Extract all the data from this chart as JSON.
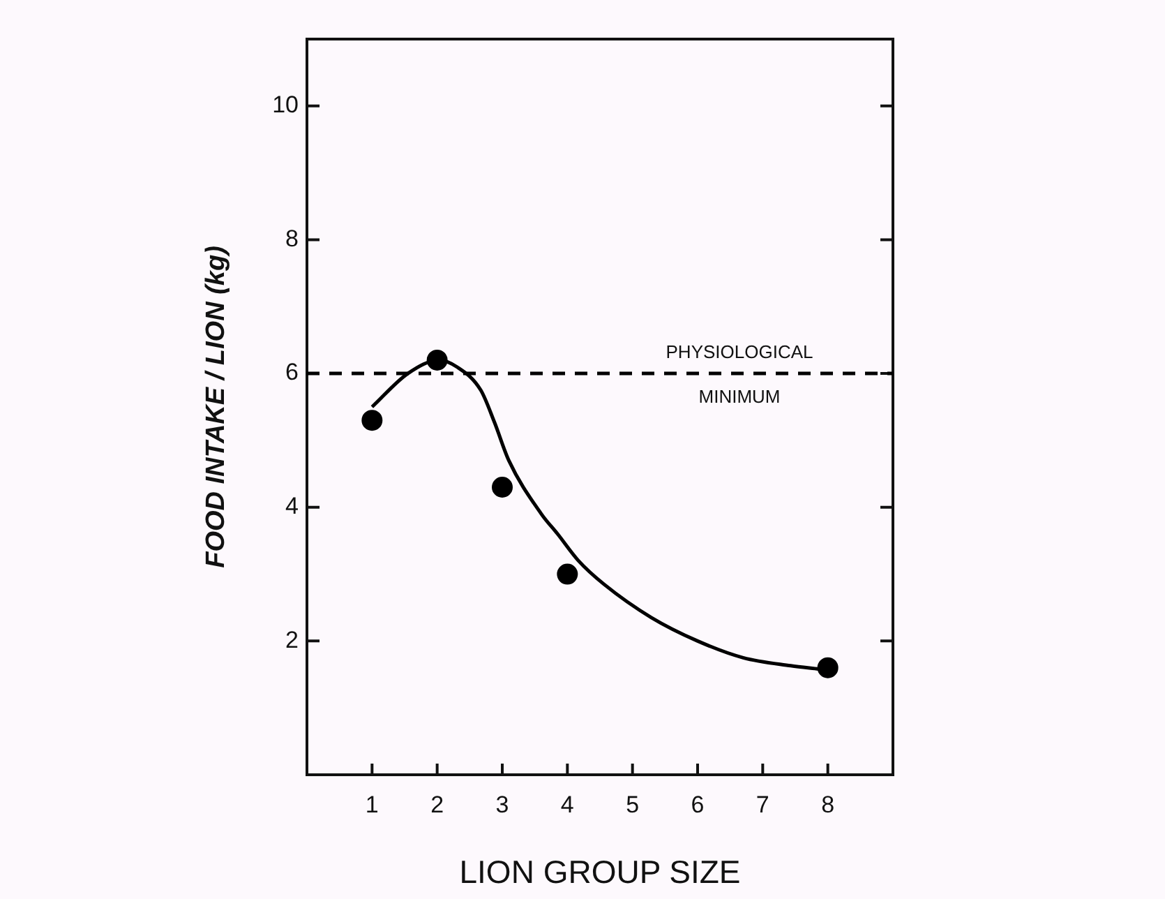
{
  "chart_data": {
    "type": "scatter",
    "xlabel": "LION GROUP SIZE",
    "ylabel": "FOOD INTAKE / LION (kg)",
    "xlim": [
      0,
      9
    ],
    "xticks": [
      1,
      2,
      3,
      4,
      5,
      6,
      7,
      8
    ],
    "ylim": [
      0,
      11
    ],
    "yticks": [
      2,
      4,
      6,
      8,
      10
    ],
    "grid": false,
    "legend": false,
    "series": [
      {
        "marker": "circle",
        "color": "#000000",
        "x": [
          1,
          2,
          3,
          4,
          8
        ],
        "values": [
          5.3,
          6.2,
          4.3,
          3.0,
          1.6
        ]
      },
      {
        "type": "line",
        "marker": "none",
        "line_style": "solid",
        "color": "#000000",
        "x": [
          1.0,
          1.55,
          2.03,
          2.3,
          2.67,
          2.88,
          3.1,
          3.6,
          3.85,
          4.17,
          4.56,
          5.29,
          6.0,
          6.7,
          7.43,
          7.86
        ],
        "values": [
          5.5,
          6.0,
          6.2,
          6.1,
          5.75,
          5.27,
          4.7,
          3.9,
          3.6,
          3.2,
          2.85,
          2.35,
          2.0,
          1.75,
          1.63,
          1.58
        ]
      }
    ],
    "ref_lines": [
      {
        "axis": "y",
        "value": 6,
        "label": "PHYSIOLOGICAL MINIMUM",
        "color": "#000000",
        "line_style": "dashed"
      }
    ]
  }
}
